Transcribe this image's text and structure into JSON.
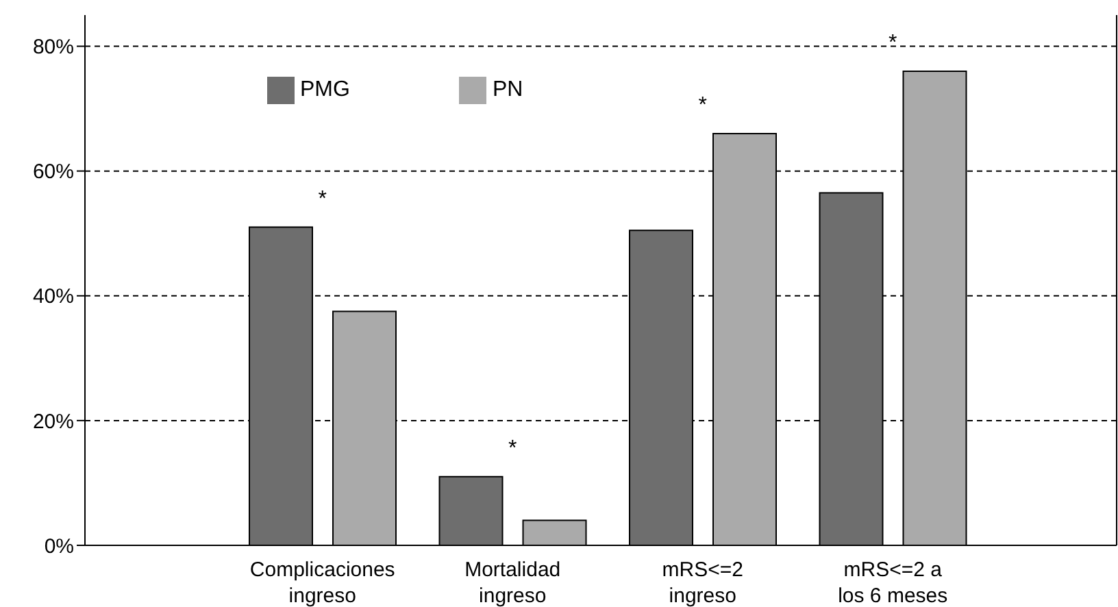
{
  "chart_data": {
    "type": "bar",
    "categories": [
      "Complicaciones ingreso",
      "Mortalidad ingreso",
      "mRS<=2 ingreso",
      "mRS<=2 a los 6 meses"
    ],
    "series": [
      {
        "name": "PMG",
        "color": "#6e6e6e",
        "values": [
          51,
          11,
          50.5,
          56.5
        ]
      },
      {
        "name": "PN",
        "color": "#aaaaaa",
        "values": [
          37.5,
          4,
          66,
          76
        ]
      }
    ],
    "ylim": [
      0,
      85
    ],
    "yticks": [
      {
        "value": 0,
        "label": "0%"
      },
      {
        "value": 20,
        "label": "20%"
      },
      {
        "value": 40,
        "label": "40%"
      },
      {
        "value": 60,
        "label": "60%"
      },
      {
        "value": 80,
        "label": "80%"
      }
    ],
    "grid": "y",
    "legend": "top left",
    "annotations": [
      "*",
      "*",
      "*",
      "*"
    ]
  }
}
